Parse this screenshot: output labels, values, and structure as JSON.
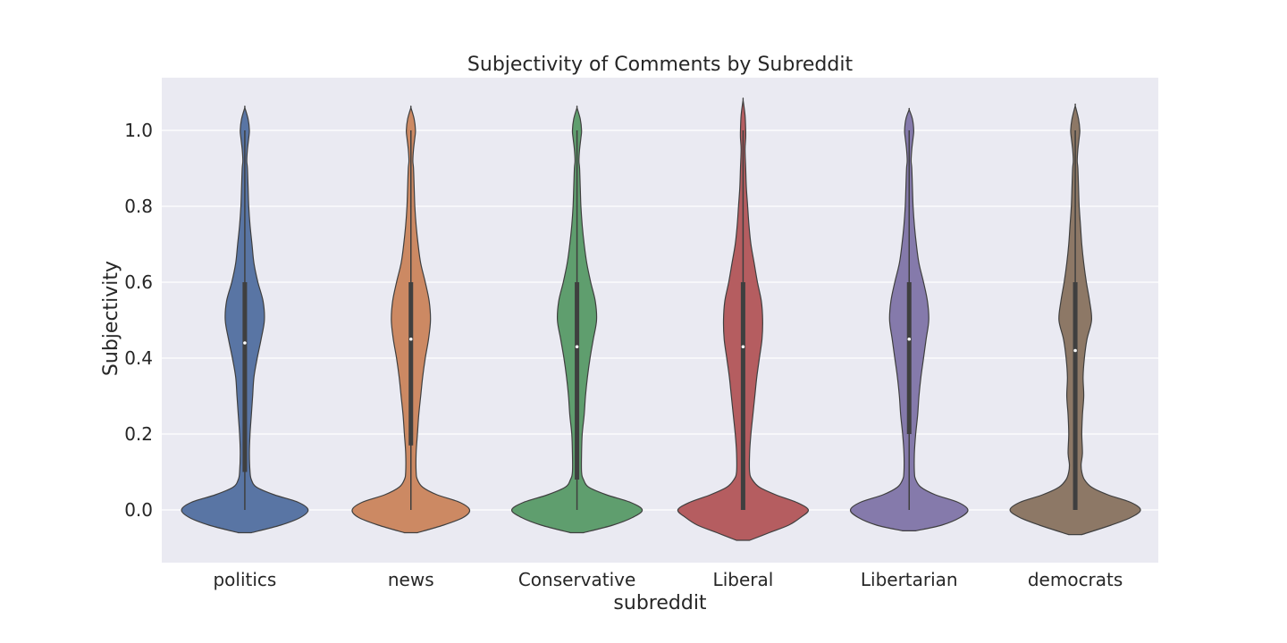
{
  "chart_data": {
    "type": "violin",
    "title": "Subjectivity of Comments by Subreddit",
    "xlabel": "subreddit",
    "ylabel": "Subjectivity",
    "ylim": [
      -0.14,
      1.12
    ],
    "yticks": [
      "0.0",
      "0.2",
      "0.4",
      "0.6",
      "0.8",
      "1.0"
    ],
    "grid": true,
    "background": "#eaeaf2",
    "categories": [
      "politics",
      "news",
      "Conservative",
      "Liberal",
      "Libertarian",
      "democrats"
    ],
    "colors": [
      "#5975a4",
      "#cc8963",
      "#5f9e6e",
      "#b55d60",
      "#857aab",
      "#8d7866"
    ],
    "series": [
      {
        "median": 0.44,
        "q1": 0.1,
        "q3": 0.6,
        "min": 0.0,
        "max": 1.0,
        "kde_min": -0.06,
        "kde_max": 1.06,
        "density": [
          [
            -0.06,
            0.1
          ],
          [
            -0.04,
            0.55
          ],
          [
            -0.02,
            0.85
          ],
          [
            0.0,
            0.97
          ],
          [
            0.02,
            0.82
          ],
          [
            0.04,
            0.45
          ],
          [
            0.06,
            0.18
          ],
          [
            0.08,
            0.1
          ],
          [
            0.1,
            0.08
          ],
          [
            0.15,
            0.07
          ],
          [
            0.2,
            0.08
          ],
          [
            0.25,
            0.1
          ],
          [
            0.3,
            0.12
          ],
          [
            0.35,
            0.14
          ],
          [
            0.4,
            0.19
          ],
          [
            0.45,
            0.25
          ],
          [
            0.5,
            0.3
          ],
          [
            0.55,
            0.28
          ],
          [
            0.6,
            0.2
          ],
          [
            0.65,
            0.14
          ],
          [
            0.7,
            0.11
          ],
          [
            0.75,
            0.08
          ],
          [
            0.8,
            0.06
          ],
          [
            0.85,
            0.05
          ],
          [
            0.9,
            0.04
          ],
          [
            0.92,
            0.03
          ],
          [
            0.95,
            0.04
          ],
          [
            0.98,
            0.06
          ],
          [
            1.0,
            0.07
          ],
          [
            1.03,
            0.05
          ],
          [
            1.06,
            0.0
          ]
        ]
      },
      {
        "median": 0.45,
        "q1": 0.17,
        "q3": 0.6,
        "min": 0.0,
        "max": 1.0,
        "kde_min": -0.06,
        "kde_max": 1.06,
        "density": [
          [
            -0.06,
            0.1
          ],
          [
            -0.04,
            0.5
          ],
          [
            -0.02,
            0.8
          ],
          [
            0.0,
            0.9
          ],
          [
            0.02,
            0.75
          ],
          [
            0.04,
            0.4
          ],
          [
            0.06,
            0.18
          ],
          [
            0.08,
            0.1
          ],
          [
            0.1,
            0.08
          ],
          [
            0.15,
            0.08
          ],
          [
            0.2,
            0.1
          ],
          [
            0.25,
            0.12
          ],
          [
            0.3,
            0.15
          ],
          [
            0.35,
            0.18
          ],
          [
            0.4,
            0.22
          ],
          [
            0.45,
            0.27
          ],
          [
            0.5,
            0.3
          ],
          [
            0.55,
            0.28
          ],
          [
            0.6,
            0.22
          ],
          [
            0.65,
            0.15
          ],
          [
            0.7,
            0.11
          ],
          [
            0.75,
            0.08
          ],
          [
            0.8,
            0.06
          ],
          [
            0.85,
            0.05
          ],
          [
            0.9,
            0.04
          ],
          [
            0.92,
            0.03
          ],
          [
            0.95,
            0.04
          ],
          [
            0.98,
            0.06
          ],
          [
            1.0,
            0.07
          ],
          [
            1.03,
            0.05
          ],
          [
            1.06,
            0.0
          ]
        ]
      },
      {
        "median": 0.43,
        "q1": 0.08,
        "q3": 0.6,
        "min": 0.0,
        "max": 1.0,
        "kde_min": -0.06,
        "kde_max": 1.06,
        "density": [
          [
            -0.06,
            0.1
          ],
          [
            -0.04,
            0.55
          ],
          [
            -0.02,
            0.85
          ],
          [
            0.0,
            1.0
          ],
          [
            0.02,
            0.82
          ],
          [
            0.04,
            0.45
          ],
          [
            0.06,
            0.18
          ],
          [
            0.08,
            0.1
          ],
          [
            0.1,
            0.07
          ],
          [
            0.15,
            0.07
          ],
          [
            0.2,
            0.08
          ],
          [
            0.25,
            0.11
          ],
          [
            0.3,
            0.13
          ],
          [
            0.35,
            0.16
          ],
          [
            0.4,
            0.2
          ],
          [
            0.45,
            0.25
          ],
          [
            0.5,
            0.3
          ],
          [
            0.55,
            0.28
          ],
          [
            0.6,
            0.21
          ],
          [
            0.65,
            0.15
          ],
          [
            0.7,
            0.11
          ],
          [
            0.75,
            0.08
          ],
          [
            0.8,
            0.06
          ],
          [
            0.85,
            0.05
          ],
          [
            0.9,
            0.04
          ],
          [
            0.92,
            0.03
          ],
          [
            0.95,
            0.04
          ],
          [
            0.98,
            0.06
          ],
          [
            1.0,
            0.07
          ],
          [
            1.03,
            0.05
          ],
          [
            1.06,
            0.0
          ]
        ]
      },
      {
        "median": 0.43,
        "q1": 0.0,
        "q3": 0.6,
        "min": 0.0,
        "max": 1.0,
        "kde_min": -0.08,
        "kde_max": 1.08,
        "density": [
          [
            -0.08,
            0.1
          ],
          [
            -0.06,
            0.4
          ],
          [
            -0.04,
            0.7
          ],
          [
            -0.02,
            0.88
          ],
          [
            0.0,
            1.0
          ],
          [
            0.02,
            0.82
          ],
          [
            0.04,
            0.5
          ],
          [
            0.06,
            0.25
          ],
          [
            0.08,
            0.14
          ],
          [
            0.1,
            0.1
          ],
          [
            0.15,
            0.1
          ],
          [
            0.2,
            0.12
          ],
          [
            0.25,
            0.15
          ],
          [
            0.3,
            0.18
          ],
          [
            0.35,
            0.21
          ],
          [
            0.4,
            0.25
          ],
          [
            0.45,
            0.29
          ],
          [
            0.5,
            0.3
          ],
          [
            0.55,
            0.28
          ],
          [
            0.6,
            0.22
          ],
          [
            0.65,
            0.17
          ],
          [
            0.7,
            0.12
          ],
          [
            0.75,
            0.09
          ],
          [
            0.8,
            0.07
          ],
          [
            0.85,
            0.05
          ],
          [
            0.9,
            0.04
          ],
          [
            0.95,
            0.03
          ],
          [
            0.98,
            0.04
          ],
          [
            1.0,
            0.04
          ],
          [
            1.04,
            0.03
          ],
          [
            1.08,
            0.0
          ]
        ]
      },
      {
        "median": 0.45,
        "q1": 0.2,
        "q3": 0.6,
        "min": 0.0,
        "max": 1.0,
        "kde_min": -0.055,
        "kde_max": 1.055,
        "density": [
          [
            -0.055,
            0.1
          ],
          [
            -0.04,
            0.5
          ],
          [
            -0.02,
            0.78
          ],
          [
            0.0,
            0.9
          ],
          [
            0.02,
            0.75
          ],
          [
            0.04,
            0.4
          ],
          [
            0.06,
            0.18
          ],
          [
            0.08,
            0.1
          ],
          [
            0.1,
            0.08
          ],
          [
            0.15,
            0.08
          ],
          [
            0.2,
            0.1
          ],
          [
            0.25,
            0.13
          ],
          [
            0.3,
            0.15
          ],
          [
            0.35,
            0.18
          ],
          [
            0.4,
            0.22
          ],
          [
            0.45,
            0.26
          ],
          [
            0.5,
            0.3
          ],
          [
            0.55,
            0.28
          ],
          [
            0.6,
            0.22
          ],
          [
            0.65,
            0.15
          ],
          [
            0.7,
            0.11
          ],
          [
            0.75,
            0.08
          ],
          [
            0.8,
            0.06
          ],
          [
            0.85,
            0.05
          ],
          [
            0.9,
            0.04
          ],
          [
            0.92,
            0.03
          ],
          [
            0.95,
            0.04
          ],
          [
            0.98,
            0.06
          ],
          [
            1.0,
            0.07
          ],
          [
            1.03,
            0.05
          ],
          [
            1.055,
            0.0
          ]
        ]
      },
      {
        "median": 0.42,
        "q1": 0.0,
        "q3": 0.6,
        "min": 0.0,
        "max": 1.0,
        "kde_min": -0.065,
        "kde_max": 1.065,
        "density": [
          [
            -0.065,
            0.1
          ],
          [
            -0.04,
            0.55
          ],
          [
            -0.02,
            0.85
          ],
          [
            0.0,
            1.0
          ],
          [
            0.02,
            0.85
          ],
          [
            0.04,
            0.5
          ],
          [
            0.06,
            0.25
          ],
          [
            0.08,
            0.14
          ],
          [
            0.1,
            0.1
          ],
          [
            0.12,
            0.09
          ],
          [
            0.15,
            0.11
          ],
          [
            0.2,
            0.1
          ],
          [
            0.25,
            0.11
          ],
          [
            0.3,
            0.13
          ],
          [
            0.35,
            0.12
          ],
          [
            0.4,
            0.14
          ],
          [
            0.45,
            0.18
          ],
          [
            0.5,
            0.25
          ],
          [
            0.55,
            0.22
          ],
          [
            0.6,
            0.17
          ],
          [
            0.65,
            0.13
          ],
          [
            0.7,
            0.1
          ],
          [
            0.75,
            0.08
          ],
          [
            0.8,
            0.06
          ],
          [
            0.85,
            0.05
          ],
          [
            0.9,
            0.04
          ],
          [
            0.92,
            0.03
          ],
          [
            0.95,
            0.04
          ],
          [
            0.98,
            0.06
          ],
          [
            1.0,
            0.07
          ],
          [
            1.03,
            0.05
          ],
          [
            1.065,
            0.0
          ]
        ]
      }
    ]
  }
}
